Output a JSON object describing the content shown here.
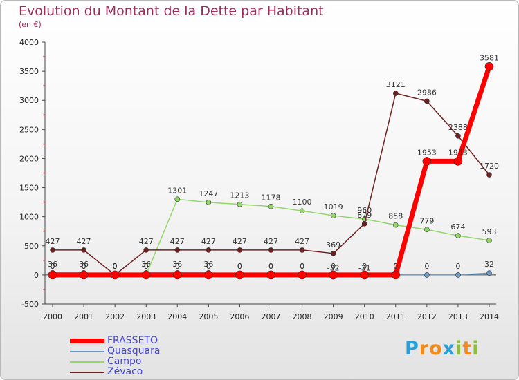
{
  "header": {
    "title": "Evolution du Montant de la Dette par Habitant",
    "subtitle": "(en €)"
  },
  "brand": {
    "p": "P",
    "ro": "ro",
    "x": "x",
    "i1": "i",
    "t": "t",
    "i2": "i",
    "colors": {
      "blue": "#2aa0d8",
      "orange": "#f08b1c",
      "green": "#8cbf3a"
    }
  },
  "chart_data": {
    "type": "line",
    "title": "Evolution du Montant de la Dette par Habitant",
    "subtitle": "(en €)",
    "xlabel": "",
    "ylabel": "",
    "x": [
      2000,
      2001,
      2002,
      2003,
      2004,
      2005,
      2006,
      2007,
      2008,
      2009,
      2010,
      2011,
      2012,
      2013,
      2014
    ],
    "ylim": [
      -500,
      4000
    ],
    "yticks": [
      -500,
      0,
      500,
      1000,
      1500,
      2000,
      2500,
      3000,
      3500,
      4000
    ],
    "grid": false,
    "legend_position": "bottom-left",
    "series": [
      {
        "name": "FRASSETO",
        "color": "#ff0000",
        "values": [
          0,
          0,
          0,
          0,
          0,
          0,
          0,
          0,
          0,
          0,
          0,
          0,
          1953,
          1953,
          3581
        ],
        "labels": [
          "0",
          "0",
          "0",
          "0",
          "0",
          "0",
          "0",
          "0",
          "0",
          "0",
          "0",
          "0",
          "1953",
          "1953",
          "3581"
        ]
      },
      {
        "name": "Quasquara",
        "color": "#6a9bc9",
        "values": [
          36,
          36,
          0,
          36,
          36,
          36,
          0,
          0,
          0,
          -32,
          -31,
          0,
          0,
          0,
          32
        ],
        "labels": [
          "36",
          "36",
          "0",
          "36",
          "36",
          "36",
          "0",
          "0",
          "0",
          "-32",
          "-31",
          "0",
          "0",
          "0",
          "32"
        ]
      },
      {
        "name": "Campo",
        "color": "#93d66a",
        "values": [
          0,
          0,
          0,
          0,
          1301,
          1247,
          1213,
          1178,
          1100,
          1019,
          960,
          858,
          779,
          674,
          593
        ],
        "labels": [
          "0",
          "0",
          "0",
          "0",
          "1301",
          "1247",
          "1213",
          "1178",
          "1100",
          "1019",
          "960",
          "858",
          "779",
          "674",
          "593"
        ]
      },
      {
        "name": "Zévaco",
        "color": "#6e1f1f",
        "values": [
          427,
          427,
          0,
          427,
          427,
          427,
          427,
          427,
          427,
          369,
          879,
          3121,
          2986,
          2388,
          1720
        ],
        "labels": [
          "427",
          "427",
          "0",
          "427",
          "427",
          "427",
          "427",
          "427",
          "427",
          "369",
          "879",
          "3121",
          "2986",
          "2388",
          "1720"
        ]
      }
    ]
  }
}
